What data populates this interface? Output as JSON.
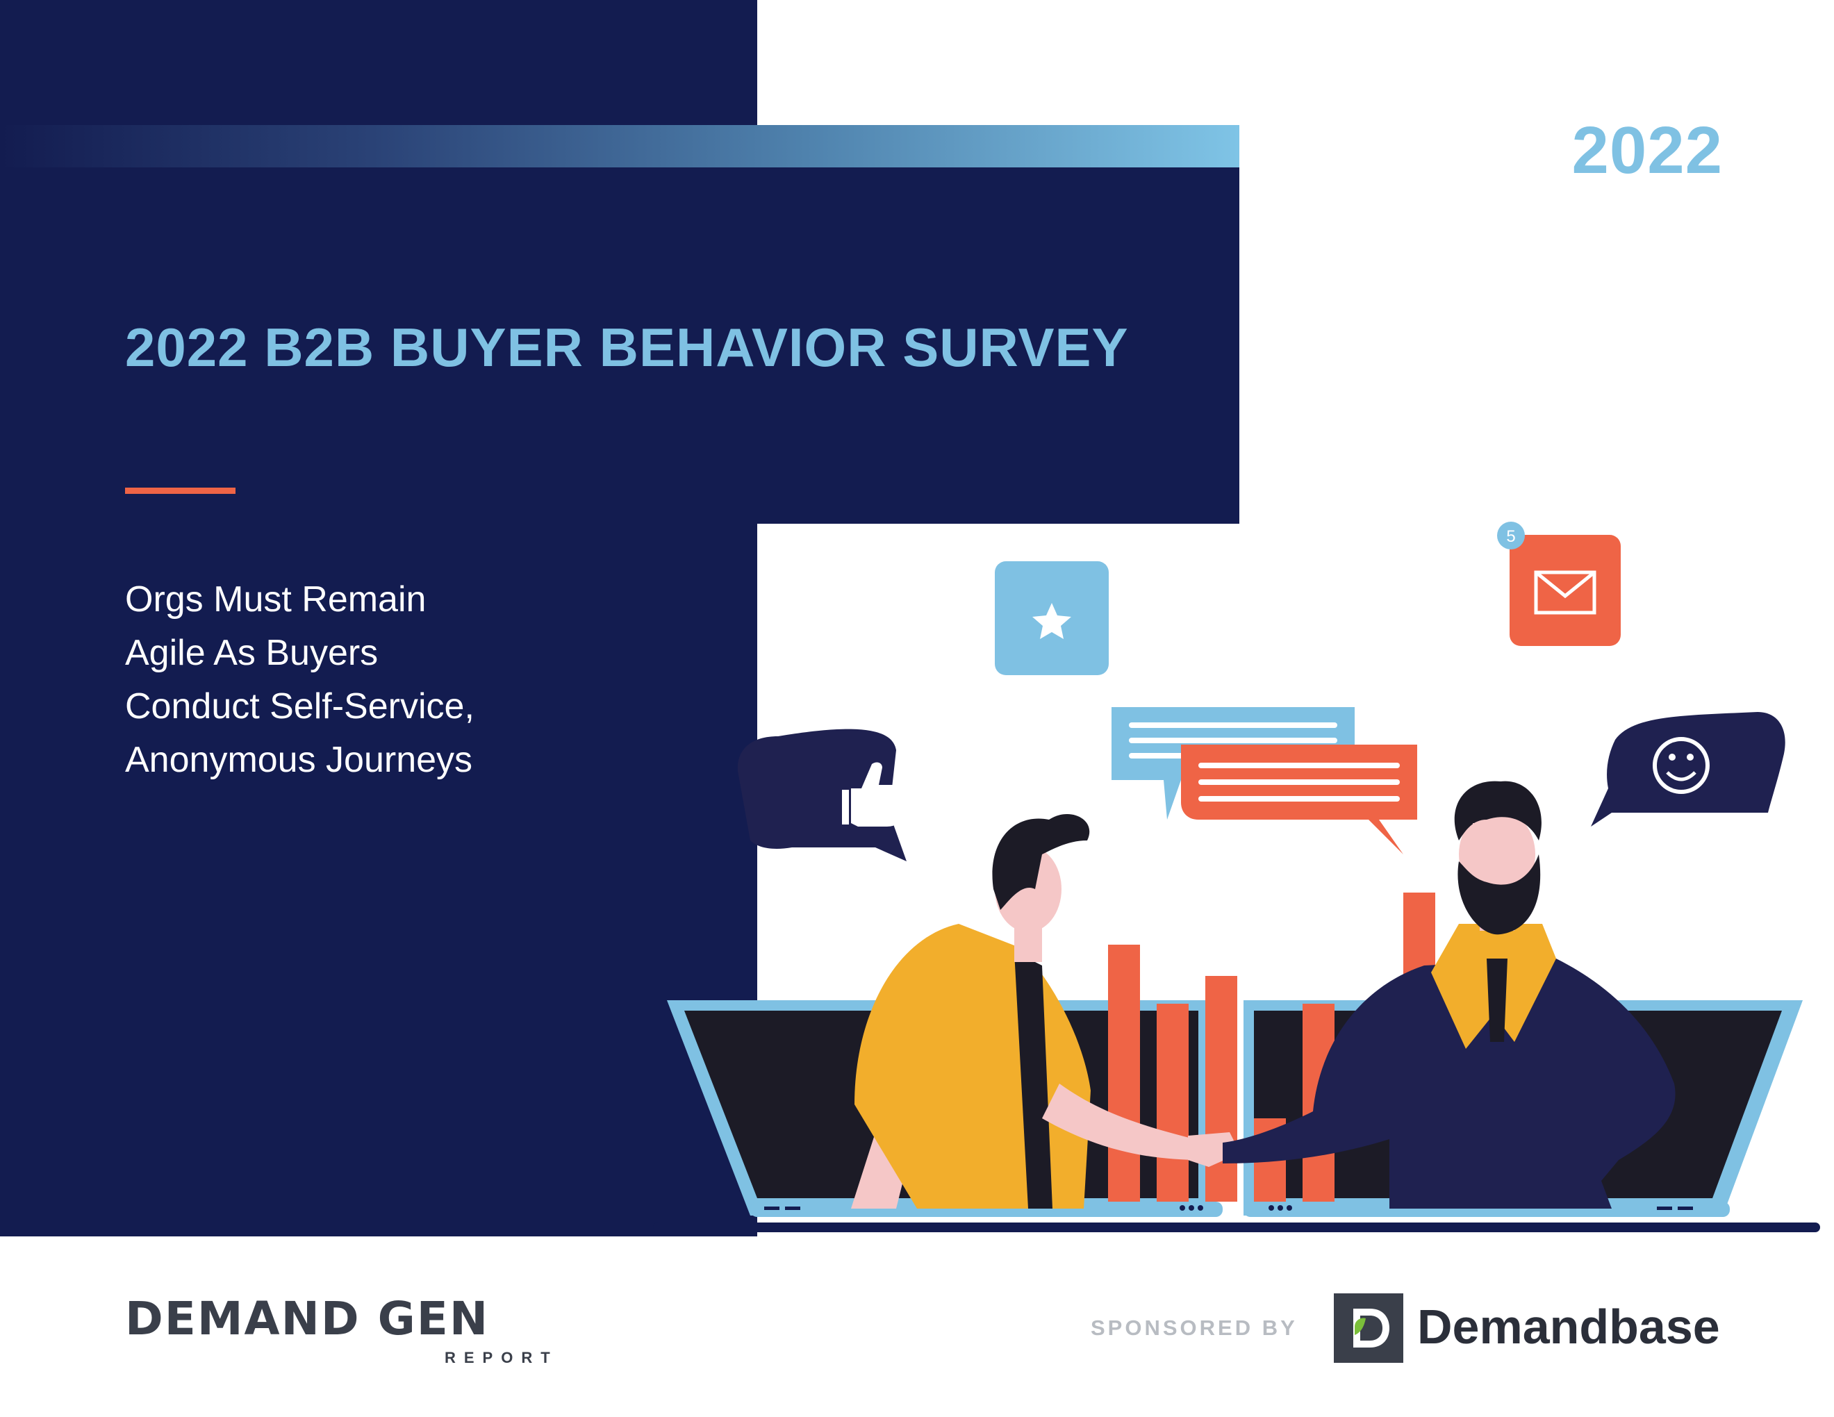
{
  "cover": {
    "year": "2022",
    "title": "2022 B2B BUYER BEHAVIOR SURVEY",
    "subtitle_lines": [
      "Orgs Must Remain",
      "Agile As Buyers",
      "Conduct Self-Service,",
      "Anonymous Journeys"
    ]
  },
  "illustration": {
    "notification_count": "5",
    "icons": [
      "star-icon",
      "mail-icon",
      "thumbs-up-icon",
      "smiley-icon"
    ]
  },
  "footer": {
    "publisher_logo": "DEMAND GEN",
    "publisher_sub": "REPORT",
    "sponsored_label": "SPONSORED BY",
    "sponsor_name": "Demandbase"
  },
  "colors": {
    "navy": "#131c50",
    "light_blue": "#7fc1e3",
    "orange": "#ef6446",
    "yellow": "#f2ae2c"
  }
}
